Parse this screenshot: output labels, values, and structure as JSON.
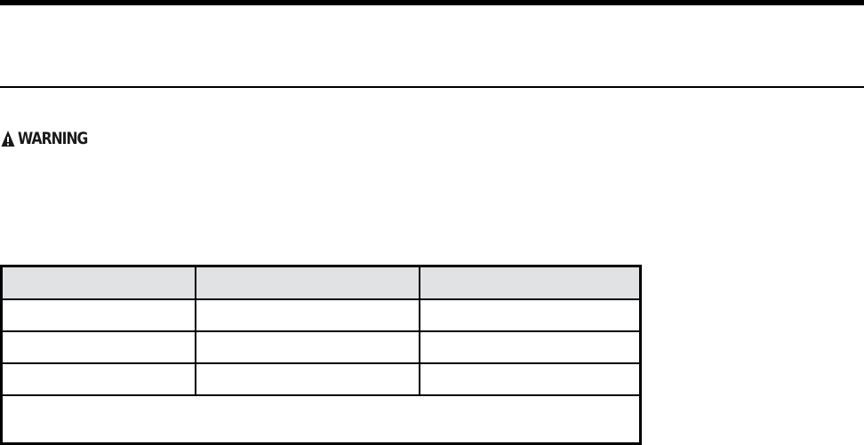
{
  "warning": {
    "label": "WARNING",
    "icon": "warning-triangle-icon"
  },
  "table": {
    "header_color": "#e1e2e4",
    "headers": [
      "",
      "",
      ""
    ],
    "rows": [
      [
        "",
        "",
        ""
      ],
      [
        "",
        "",
        ""
      ],
      [
        "",
        "",
        ""
      ]
    ],
    "footer": ""
  }
}
